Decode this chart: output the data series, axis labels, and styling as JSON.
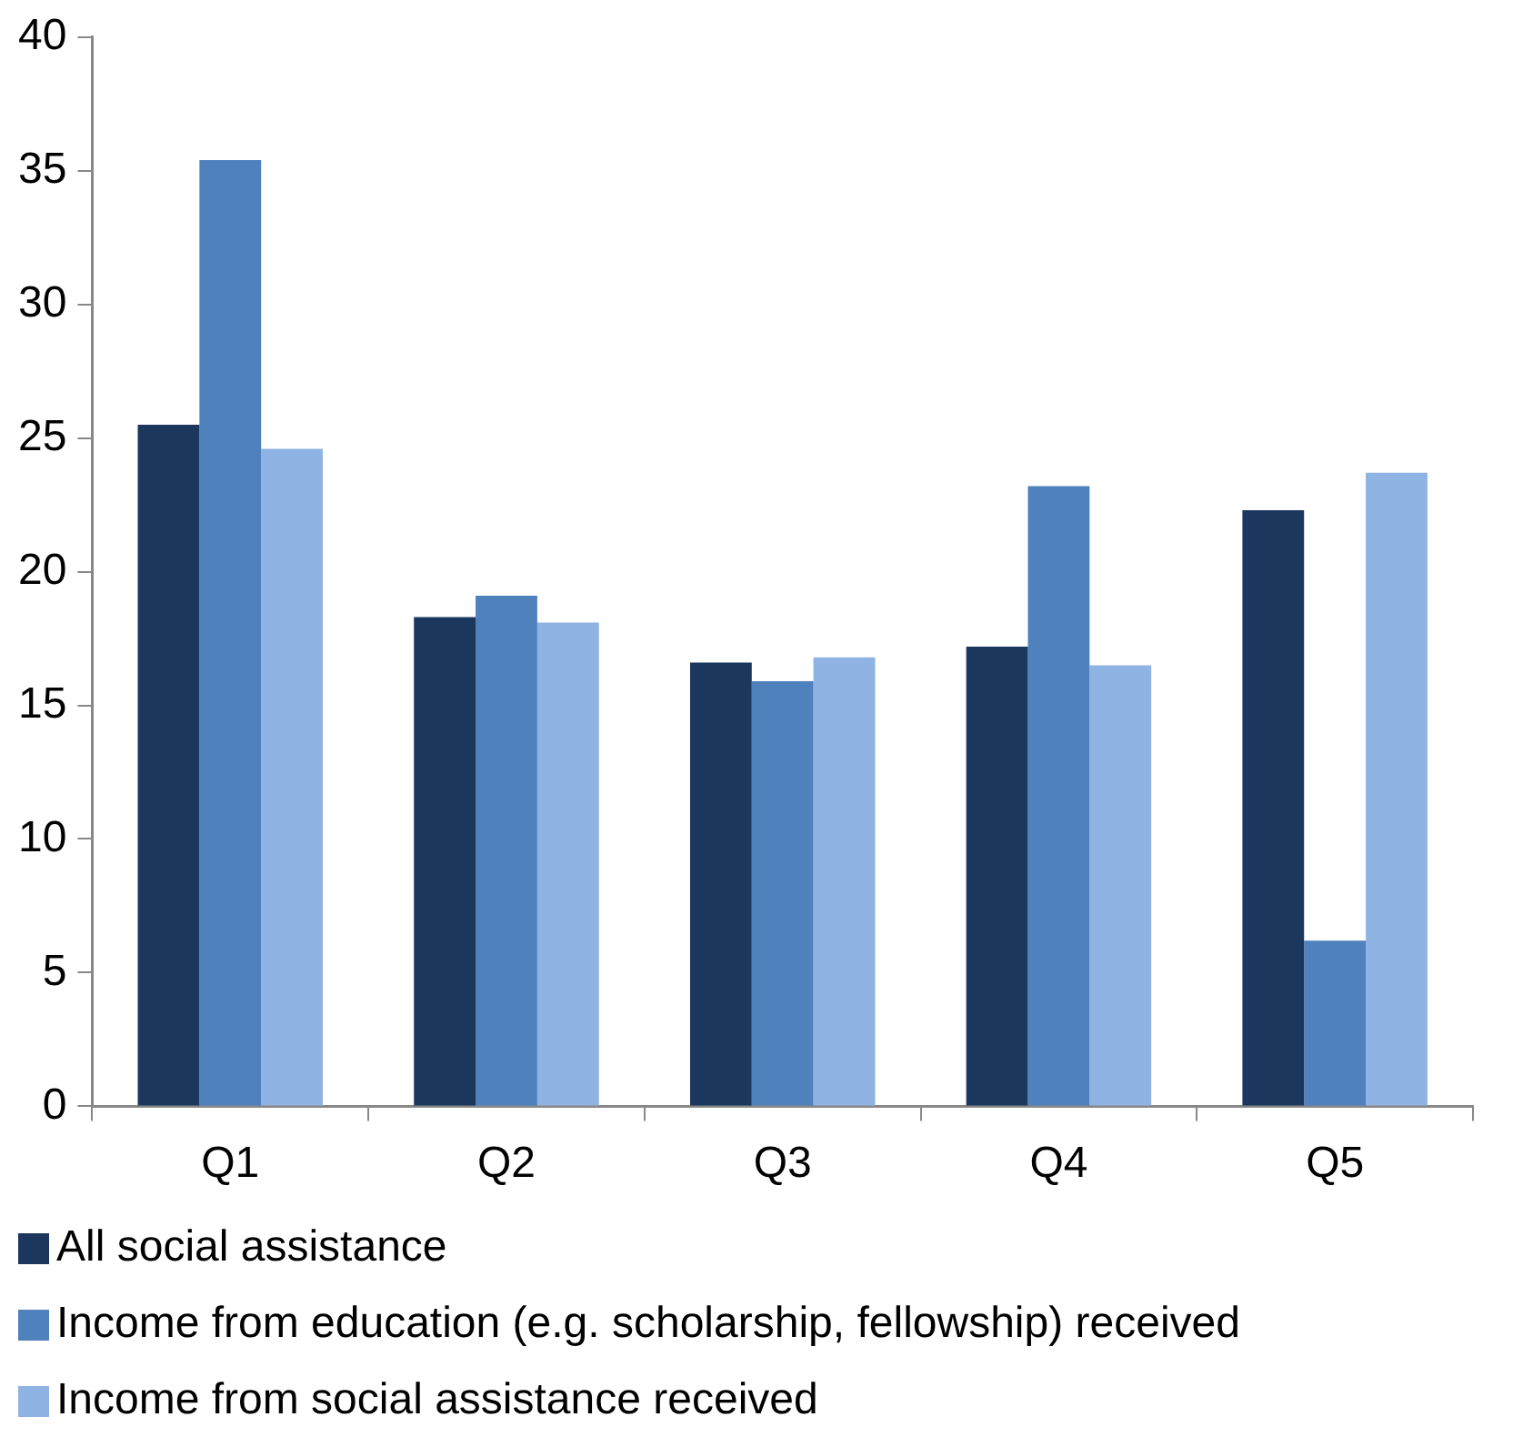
{
  "chart_data": {
    "type": "bar",
    "categories": [
      "Q1",
      "Q2",
      "Q3",
      "Q4",
      "Q5"
    ],
    "series": [
      {
        "name": "All social assistance",
        "color": "#1b375e",
        "values": [
          25.5,
          18.3,
          16.6,
          17.2,
          22.3
        ]
      },
      {
        "name": "Income from education (e.g. scholarship, fellowship) received",
        "color": "#4f81bd",
        "values": [
          35.4,
          19.1,
          15.9,
          23.2,
          6.2
        ]
      },
      {
        "name": "Income from social assistance received",
        "color": "#8fb3e2",
        "values": [
          24.6,
          18.1,
          16.8,
          16.5,
          23.7
        ]
      }
    ],
    "ylim": [
      0,
      40
    ],
    "yticks": [
      0,
      5,
      10,
      15,
      20,
      25,
      30,
      35,
      40
    ],
    "grid": false,
    "legend": "bottom"
  }
}
